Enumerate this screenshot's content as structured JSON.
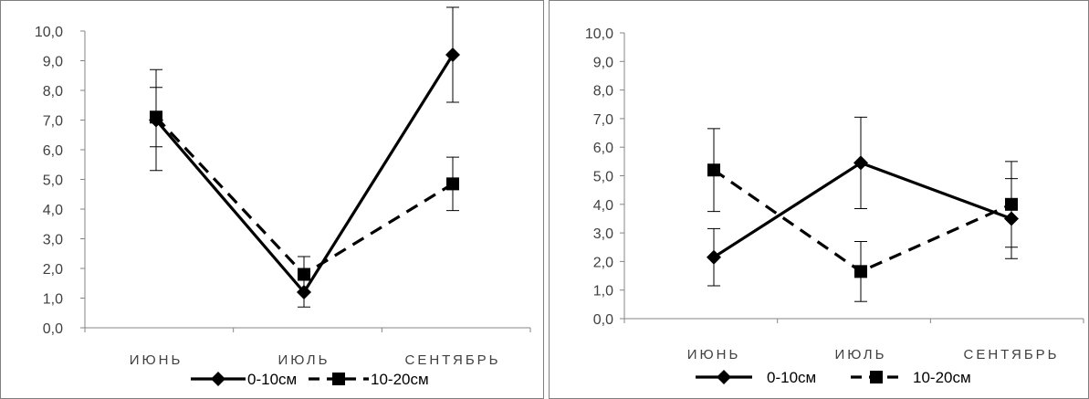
{
  "chart_data": [
    {
      "type": "line",
      "title": "",
      "xlabel": "",
      "ylabel": "",
      "categories": [
        "ИЮНЬ",
        "ИЮЛЬ",
        "СЕНТЯБРЬ"
      ],
      "ylim": [
        0,
        10
      ],
      "yticks": [
        "0,0",
        "1,0",
        "2,0",
        "3,0",
        "4,0",
        "5,0",
        "6,0",
        "7,0",
        "8,0",
        "9,0",
        "10,0"
      ],
      "grid": false,
      "legend": "bottom",
      "series": [
        {
          "name": "0-10см",
          "values": [
            7.0,
            1.2,
            9.2
          ],
          "error": [
            1.7,
            0.5,
            1.6
          ],
          "marker": "diamond",
          "dash": "solid"
        },
        {
          "name": "10-20см",
          "values": [
            7.1,
            1.8,
            4.85
          ],
          "error": [
            1.0,
            0.6,
            0.9
          ],
          "marker": "square",
          "dash": "dashed"
        }
      ]
    },
    {
      "type": "line",
      "title": "",
      "xlabel": "",
      "ylabel": "",
      "categories": [
        "ИЮНЬ",
        "ИЮЛЬ",
        "СЕНТЯБРЬ"
      ],
      "ylim": [
        0,
        10
      ],
      "yticks": [
        "0,0",
        "1,0",
        "2,0",
        "3,0",
        "4,0",
        "5,0",
        "6,0",
        "7,0",
        "8,0",
        "9,0",
        "10,0"
      ],
      "grid": false,
      "legend": "bottom",
      "series": [
        {
          "name": "0-10см",
          "values": [
            2.15,
            5.45,
            3.5
          ],
          "error": [
            1.0,
            1.6,
            1.4
          ],
          "marker": "diamond",
          "dash": "solid"
        },
        {
          "name": "10-20см",
          "values": [
            5.2,
            1.65,
            4.0
          ],
          "error": [
            1.45,
            1.05,
            1.5
          ],
          "marker": "square",
          "dash": "dashed"
        }
      ]
    }
  ]
}
